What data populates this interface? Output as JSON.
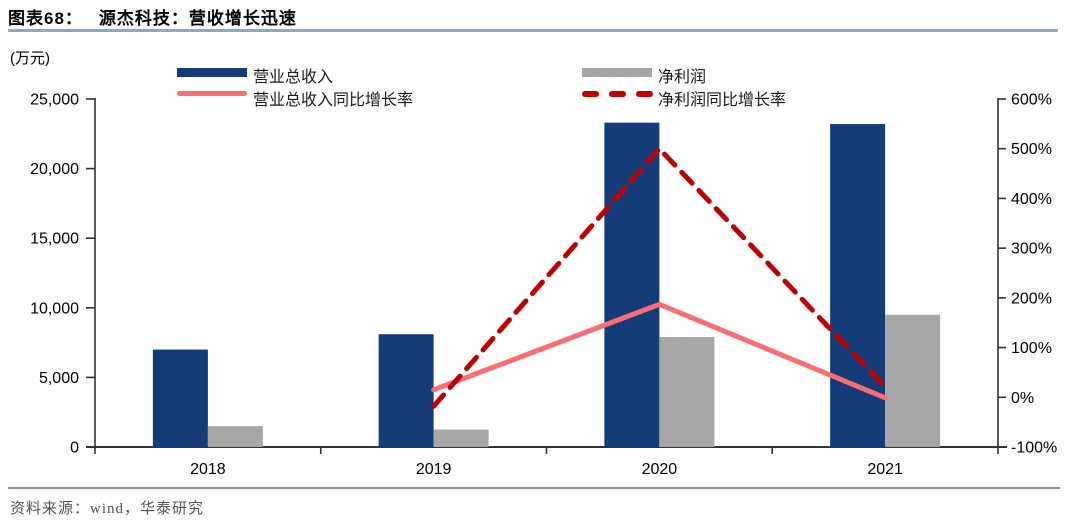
{
  "header": {
    "figure_label": "图表68：",
    "figure_title": "源杰科技：营收增长迅速"
  },
  "footer": {
    "source": "资料来源：wind，华泰研究"
  },
  "colors": {
    "title_rule": "#8ca9c6",
    "footer_rule": "#7e94aa",
    "axis": "#333333",
    "source_text": "#55544a"
  },
  "chart_data": {
    "type": "combo-bar-line",
    "title": "源杰科技：营收增长迅速",
    "unit_label": "(万元)",
    "categories": [
      "2018",
      "2019",
      "2020",
      "2021"
    ],
    "bar_series": [
      {
        "key": "revenue",
        "name": "营业总收入",
        "color": "#143c78",
        "axis": "left",
        "values": [
          7000,
          8100,
          23300,
          23200
        ]
      },
      {
        "key": "net-profit",
        "name": "净利润",
        "color": "#a6a6a6",
        "axis": "left",
        "values": [
          1500,
          1250,
          7900,
          9500
        ]
      }
    ],
    "line_series": [
      {
        "key": "revenue-growth",
        "name": "营业总收入同比增长率",
        "color": "#fb6d72",
        "style": "solid",
        "axis": "right",
        "values_pct": [
          null,
          15,
          187,
          -1
        ]
      },
      {
        "key": "net-profit-growth",
        "name": "净利润同比增长率",
        "color": "#c00000",
        "style": "dashed",
        "axis": "right",
        "values_pct": [
          null,
          -18,
          500,
          21
        ]
      }
    ],
    "left_axis": {
      "label": "(万元)",
      "min": 0,
      "max": 25000,
      "ticks": [
        "0",
        "5,000",
        "10,000",
        "15,000",
        "20,000",
        "25,000"
      ]
    },
    "right_axis": {
      "min": -100,
      "max": 600,
      "ticks": [
        "-100%",
        "0%",
        "100%",
        "200%",
        "300%",
        "400%",
        "500%",
        "600%"
      ]
    },
    "legend_position": "top",
    "grid": false
  }
}
